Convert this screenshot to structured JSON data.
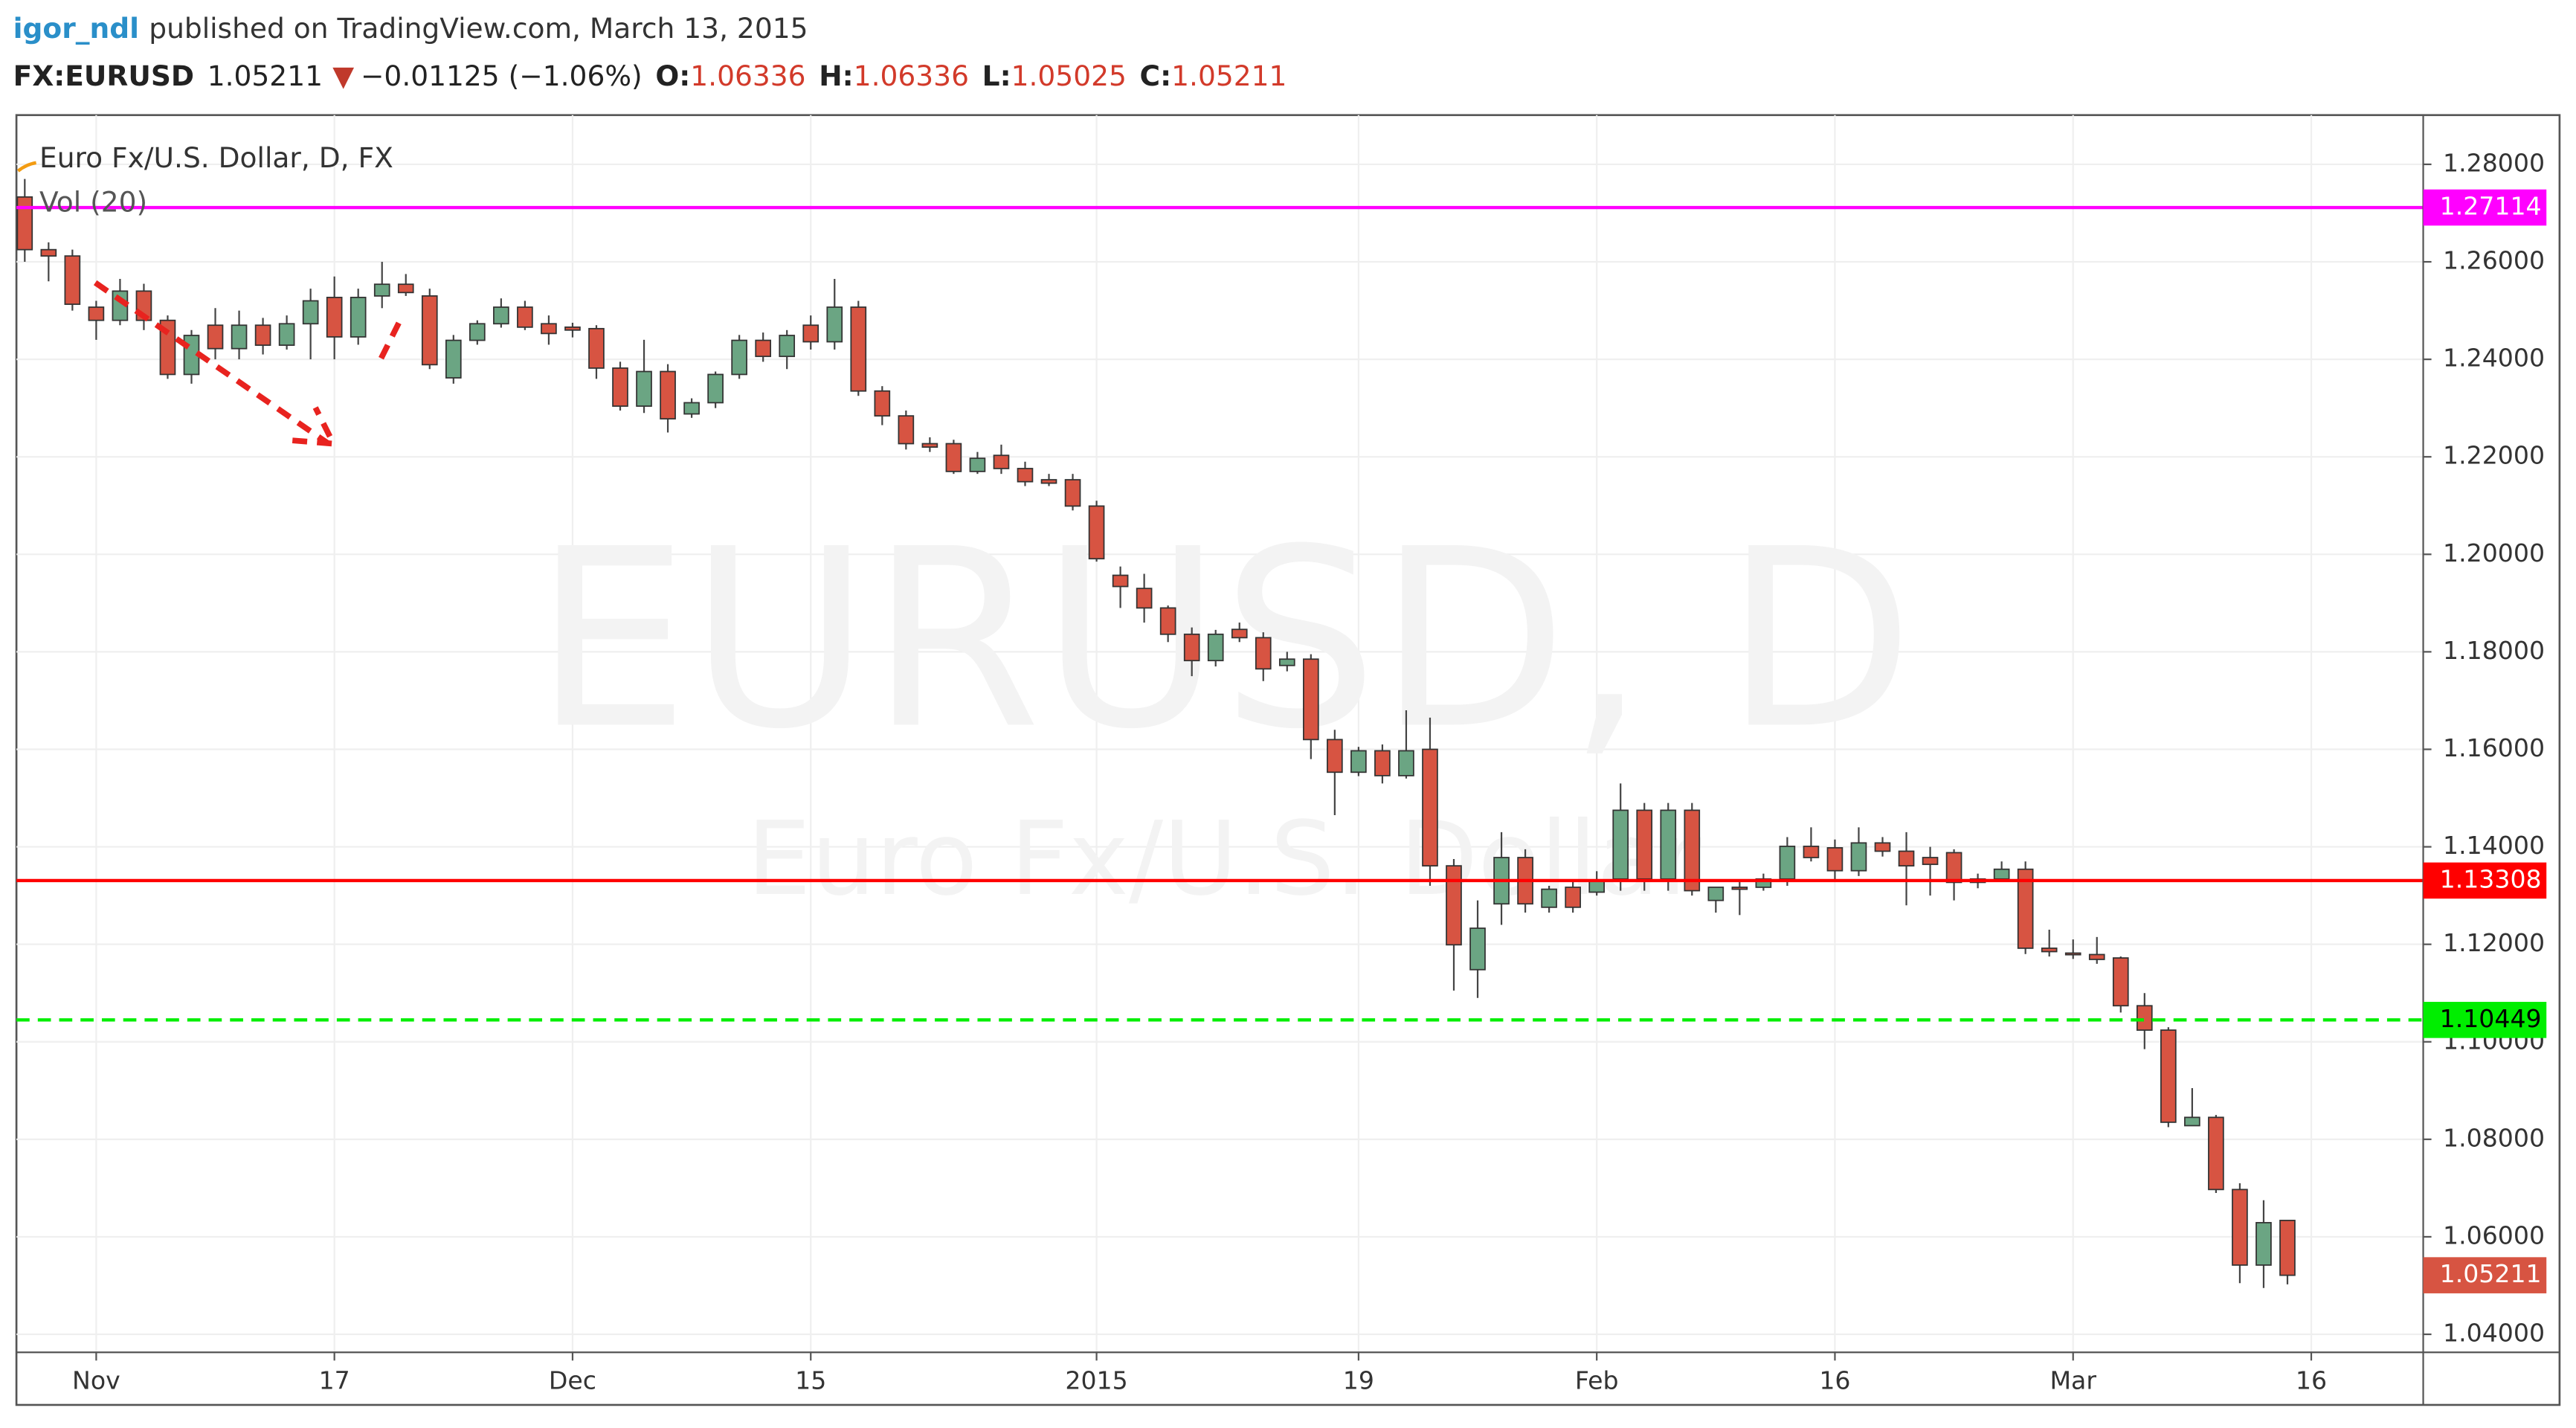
{
  "header": {
    "author": "igor_ndl",
    "published": "published on TradingView.com, March 13, 2015",
    "symbol": "FX:EURUSD",
    "last": "1.05211",
    "change": "−0.01125 (−1.06%)",
    "ohlc": [
      {
        "label": "O:",
        "value": "1.06336"
      },
      {
        "label": "H:",
        "value": "1.06336"
      },
      {
        "label": "L:",
        "value": "1.05025"
      },
      {
        "label": "C:",
        "value": "1.05211"
      }
    ]
  },
  "chart_data": {
    "type": "candlestick",
    "title": "Euro Fx/U.S. Dollar, D, FX",
    "indicator": "Vol (20)",
    "watermark": "EURUSD, D",
    "watermark_subtitle": "Euro Fx/U.S. Dollar",
    "up_color": "#6ba583",
    "down_color": "#d75442",
    "open": [
      1.2733,
      1.2625,
      1.2612,
      1.2507,
      1.248,
      1.254,
      1.248,
      1.2369,
      1.247,
      1.2422,
      1.247,
      1.2429,
      1.2473,
      1.2527,
      1.2446,
      1.253,
      1.2554,
      1.253,
      1.2362,
      1.2439,
      1.2473,
      1.2507,
      1.2473,
      1.2466,
      1.2463,
      1.2382,
      1.2304,
      1.2375,
      1.2288,
      1.2311,
      1.2369,
      1.2439,
      1.2406,
      1.247,
      1.2436,
      1.2507,
      1.2335,
      1.2284,
      1.2227,
      1.2227,
      1.217,
      1.2203,
      1.2176,
      1.2153,
      1.2153,
      1.2099,
      1.1957,
      1.193,
      1.189,
      1.1836,
      1.1782,
      1.1846,
      1.1829,
      1.1772,
      1.1785,
      1.162,
      1.1553,
      1.1597,
      1.1546,
      1.16,
      1.1361,
      1.1148,
      1.1283,
      1.1378,
      1.1276,
      1.1317,
      1.1307,
      1.1334,
      1.1475,
      1.1334,
      1.1475,
      1.129,
      1.1317,
      1.1317,
      1.1334,
      1.1401,
      1.1398,
      1.1351,
      1.1408,
      1.1391,
      1.1378,
      1.1388,
      1.1334,
      1.1334,
      1.1354,
      1.1192,
      1.1182,
      1.1179,
      1.1172,
      1.1074,
      1.1024,
      1.0828,
      1.0845,
      1.0697,
      1.0542,
      1.06336
    ],
    "high": [
      1.277,
      1.264,
      1.2625,
      1.252,
      1.2565,
      1.2555,
      1.249,
      1.246,
      1.2505,
      1.25,
      1.2485,
      1.249,
      1.2545,
      1.257,
      1.2545,
      1.26,
      1.2575,
      1.2545,
      1.245,
      1.248,
      1.2525,
      1.252,
      1.249,
      1.2475,
      1.247,
      1.2395,
      1.244,
      1.239,
      1.232,
      1.2375,
      1.245,
      1.2455,
      1.246,
      1.249,
      1.2565,
      1.252,
      1.2345,
      1.2295,
      1.224,
      1.2235,
      1.221,
      1.2225,
      1.219,
      1.2165,
      1.2165,
      1.211,
      1.1975,
      1.196,
      1.1895,
      1.185,
      1.1845,
      1.186,
      1.184,
      1.18,
      1.1795,
      1.164,
      1.1605,
      1.161,
      1.168,
      1.1665,
      1.1375,
      1.129,
      1.143,
      1.1395,
      1.132,
      1.133,
      1.135,
      1.153,
      1.149,
      1.149,
      1.149,
      1.13,
      1.133,
      1.1345,
      1.142,
      1.144,
      1.1415,
      1.144,
      1.142,
      1.143,
      1.14,
      1.1395,
      1.1345,
      1.137,
      1.137,
      1.123,
      1.121,
      1.1215,
      1.1175,
      1.11,
      1.103,
      1.0905,
      1.085,
      1.071,
      1.0675,
      1.06336
    ],
    "low": [
      1.26,
      1.256,
      1.25,
      1.244,
      1.247,
      1.246,
      1.236,
      1.235,
      1.24,
      1.24,
      1.241,
      1.242,
      1.24,
      1.24,
      1.243,
      1.2505,
      1.253,
      1.238,
      1.235,
      1.243,
      1.2465,
      1.246,
      1.243,
      1.2445,
      1.236,
      1.2295,
      1.229,
      1.225,
      1.228,
      1.23,
      1.236,
      1.2395,
      1.238,
      1.242,
      1.242,
      1.2325,
      1.2265,
      1.2215,
      1.221,
      1.2165,
      1.2165,
      1.2165,
      1.214,
      1.214,
      1.209,
      1.1985,
      1.189,
      1.186,
      1.182,
      1.175,
      1.177,
      1.182,
      1.174,
      1.176,
      1.158,
      1.1465,
      1.1545,
      1.153,
      1.154,
      1.132,
      1.1105,
      1.109,
      1.124,
      1.1265,
      1.1265,
      1.1265,
      1.13,
      1.131,
      1.131,
      1.131,
      1.13,
      1.1265,
      1.126,
      1.131,
      1.132,
      1.137,
      1.133,
      1.134,
      1.138,
      1.128,
      1.13,
      1.129,
      1.1315,
      1.133,
      1.118,
      1.1175,
      1.117,
      1.116,
      1.106,
      1.0985,
      1.0825,
      1.083,
      1.069,
      1.0505,
      1.0495,
      1.05025
    ],
    "close": [
      1.2625,
      1.2612,
      1.2513,
      1.248,
      1.254,
      1.248,
      1.2369,
      1.2449,
      1.2422,
      1.247,
      1.2429,
      1.2473,
      1.252,
      1.2446,
      1.2527,
      1.2554,
      1.2537,
      1.2389,
      1.2439,
      1.2473,
      1.2507,
      1.2466,
      1.2453,
      1.246,
      1.2382,
      1.2304,
      1.2375,
      1.2278,
      1.2311,
      1.2369,
      1.2439,
      1.2406,
      1.2449,
      1.2436,
      1.2507,
      1.2335,
      1.2284,
      1.2227,
      1.222,
      1.217,
      1.2197,
      1.2176,
      1.2149,
      1.2146,
      1.2099,
      1.1991,
      1.1934,
      1.189,
      1.1836,
      1.1782,
      1.1836,
      1.1829,
      1.1765,
      1.1785,
      1.162,
      1.1553,
      1.1597,
      1.1546,
      1.1597,
      1.1361,
      1.1199,
      1.1233,
      1.1378,
      1.1283,
      1.1313,
      1.1276,
      1.133,
      1.1475,
      1.1334,
      1.1475,
      1.131,
      1.1317,
      1.1313,
      1.1334,
      1.1401,
      1.1378,
      1.1351,
      1.1408,
      1.1391,
      1.1361,
      1.1364,
      1.1327,
      1.1327,
      1.1354,
      1.1192,
      1.1185,
      1.1179,
      1.1169,
      1.1074,
      1.1024,
      1.0835,
      1.0845,
      1.0697,
      1.0542,
      1.0629,
      1.05211
    ],
    "hlines": [
      {
        "value": 1.27114,
        "color": "#ff00ff",
        "dashed": false
      },
      {
        "value": 1.13308,
        "color": "#ff0000",
        "dashed": false
      },
      {
        "value": 1.10449,
        "color": "#00ee00",
        "dashed": true
      }
    ],
    "xlim": [
      -0.35,
      100.7
    ],
    "xticks": [
      {
        "value": 3,
        "label": "Nov"
      },
      {
        "value": 13,
        "label": "17"
      },
      {
        "value": 23,
        "label": "Dec"
      },
      {
        "value": 33,
        "label": "15"
      },
      {
        "value": 45,
        "label": "2015"
      },
      {
        "value": 56,
        "label": "19"
      },
      {
        "value": 66,
        "label": "Feb"
      },
      {
        "value": 76,
        "label": "16"
      },
      {
        "value": 86,
        "label": "Mar"
      },
      {
        "value": 96,
        "label": "16"
      }
    ],
    "ylim": [
      1.0363,
      1.2901
    ],
    "yticks": [
      {
        "value": 1.04,
        "label": "1.04000"
      },
      {
        "value": 1.06,
        "label": "1.06000"
      },
      {
        "value": 1.08,
        "label": "1.08000"
      },
      {
        "value": 1.1,
        "label": "1.10000"
      },
      {
        "value": 1.12,
        "label": "1.12000"
      },
      {
        "value": 1.14,
        "label": "1.14000"
      },
      {
        "value": 1.16,
        "label": "1.16000"
      },
      {
        "value": 1.18,
        "label": "1.18000"
      },
      {
        "value": 1.2,
        "label": "1.20000"
      },
      {
        "value": 1.22,
        "label": "1.22000"
      },
      {
        "value": 1.24,
        "label": "1.24000"
      },
      {
        "value": 1.26,
        "label": "1.26000"
      },
      {
        "value": 1.28,
        "label": "1.28000"
      }
    ],
    "grid": true
  }
}
